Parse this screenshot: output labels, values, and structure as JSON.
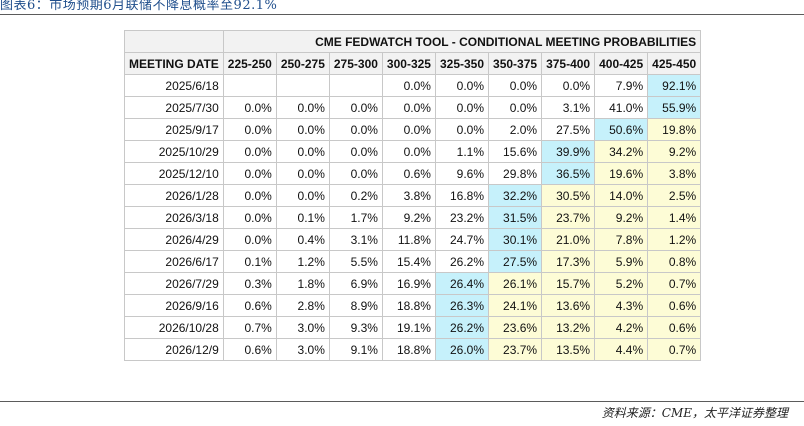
{
  "caption": "图表6：市场预期6月联储不降息概率至92.1%",
  "source": "资料来源：CME，太平洋证券整理",
  "table": {
    "title": "CME FEDWATCH TOOL - CONDITIONAL MEETING PROBABILITIES",
    "date_header": "MEETING DATE",
    "columns": [
      "225-250",
      "250-275",
      "275-300",
      "300-325",
      "325-350",
      "350-375",
      "375-400",
      "400-425",
      "425-450"
    ],
    "colors": {
      "highlight": "#c6f1fb",
      "shade": "#fdfcd6",
      "plain": "#ffffff"
    },
    "rows": [
      {
        "date": "2025/6/18",
        "values": [
          "",
          "",
          "",
          "0.0%",
          "0.0%",
          "0.0%",
          "0.0%",
          "7.9%",
          "92.1%"
        ],
        "styles": [
          "p",
          "p",
          "p",
          "p",
          "p",
          "p",
          "p",
          "p",
          "b"
        ]
      },
      {
        "date": "2025/7/30",
        "values": [
          "0.0%",
          "0.0%",
          "0.0%",
          "0.0%",
          "0.0%",
          "0.0%",
          "3.1%",
          "41.0%",
          "55.9%"
        ],
        "styles": [
          "p",
          "p",
          "p",
          "p",
          "p",
          "p",
          "p",
          "p",
          "b"
        ]
      },
      {
        "date": "2025/9/17",
        "values": [
          "0.0%",
          "0.0%",
          "0.0%",
          "0.0%",
          "0.0%",
          "2.0%",
          "27.5%",
          "50.6%",
          "19.8%"
        ],
        "styles": [
          "p",
          "p",
          "p",
          "p",
          "p",
          "p",
          "p",
          "b",
          "y"
        ]
      },
      {
        "date": "2025/10/29",
        "values": [
          "0.0%",
          "0.0%",
          "0.0%",
          "0.0%",
          "1.1%",
          "15.6%",
          "39.9%",
          "34.2%",
          "9.2%"
        ],
        "styles": [
          "p",
          "p",
          "p",
          "p",
          "p",
          "p",
          "b",
          "y",
          "y"
        ]
      },
      {
        "date": "2025/12/10",
        "values": [
          "0.0%",
          "0.0%",
          "0.0%",
          "0.6%",
          "9.6%",
          "29.8%",
          "36.5%",
          "19.6%",
          "3.8%"
        ],
        "styles": [
          "p",
          "p",
          "p",
          "p",
          "p",
          "p",
          "b",
          "y",
          "y"
        ]
      },
      {
        "date": "2026/1/28",
        "values": [
          "0.0%",
          "0.0%",
          "0.2%",
          "3.8%",
          "16.8%",
          "32.2%",
          "30.5%",
          "14.0%",
          "2.5%"
        ],
        "styles": [
          "p",
          "p",
          "p",
          "p",
          "p",
          "b",
          "y",
          "y",
          "y"
        ]
      },
      {
        "date": "2026/3/18",
        "values": [
          "0.0%",
          "0.1%",
          "1.7%",
          "9.2%",
          "23.2%",
          "31.5%",
          "23.7%",
          "9.2%",
          "1.4%"
        ],
        "styles": [
          "p",
          "p",
          "p",
          "p",
          "p",
          "b",
          "y",
          "y",
          "y"
        ]
      },
      {
        "date": "2026/4/29",
        "values": [
          "0.0%",
          "0.4%",
          "3.1%",
          "11.8%",
          "24.7%",
          "30.1%",
          "21.0%",
          "7.8%",
          "1.2%"
        ],
        "styles": [
          "p",
          "p",
          "p",
          "p",
          "p",
          "b",
          "y",
          "y",
          "y"
        ]
      },
      {
        "date": "2026/6/17",
        "values": [
          "0.1%",
          "1.2%",
          "5.5%",
          "15.4%",
          "26.2%",
          "27.5%",
          "17.3%",
          "5.9%",
          "0.8%"
        ],
        "styles": [
          "p",
          "p",
          "p",
          "p",
          "p",
          "b",
          "y",
          "y",
          "y"
        ]
      },
      {
        "date": "2026/7/29",
        "values": [
          "0.3%",
          "1.8%",
          "6.9%",
          "16.9%",
          "26.4%",
          "26.1%",
          "15.7%",
          "5.2%",
          "0.7%"
        ],
        "styles": [
          "p",
          "p",
          "p",
          "p",
          "b",
          "y",
          "y",
          "y",
          "y"
        ]
      },
      {
        "date": "2026/9/16",
        "values": [
          "0.6%",
          "2.8%",
          "8.9%",
          "18.8%",
          "26.3%",
          "24.1%",
          "13.6%",
          "4.3%",
          "0.6%"
        ],
        "styles": [
          "p",
          "p",
          "p",
          "p",
          "b",
          "y",
          "y",
          "y",
          "y"
        ]
      },
      {
        "date": "2026/10/28",
        "values": [
          "0.7%",
          "3.0%",
          "9.3%",
          "19.1%",
          "26.2%",
          "23.6%",
          "13.2%",
          "4.2%",
          "0.6%"
        ],
        "styles": [
          "p",
          "p",
          "p",
          "p",
          "b",
          "y",
          "y",
          "y",
          "y"
        ]
      },
      {
        "date": "2026/12/9",
        "values": [
          "0.6%",
          "3.0%",
          "9.1%",
          "18.8%",
          "26.0%",
          "23.7%",
          "13.5%",
          "4.4%",
          "0.7%"
        ],
        "styles": [
          "p",
          "p",
          "p",
          "p",
          "b",
          "y",
          "y",
          "y",
          "y"
        ]
      }
    ]
  }
}
